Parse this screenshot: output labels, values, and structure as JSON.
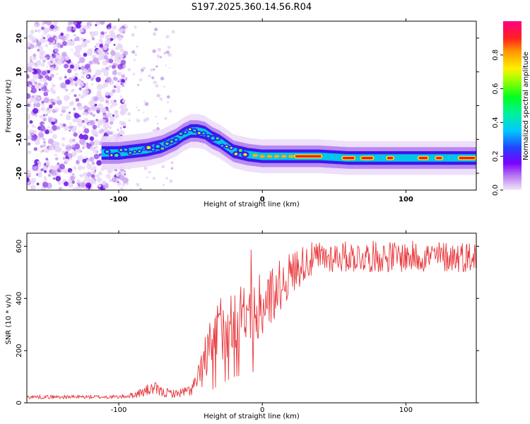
{
  "title": "S197.2025.360.14.56.R04",
  "chart_data": [
    {
      "type": "heatmap",
      "name": "spectrogram",
      "xlabel": "Height of straight line (km)",
      "ylabel": "Frequency (Hz)",
      "xlim": [
        -164,
        149
      ],
      "ylim": [
        -25,
        25
      ],
      "xticks": [
        -100,
        0,
        100
      ],
      "xtick_labels": [
        "-100",
        "0",
        "100"
      ],
      "yticks": [
        -20,
        -10,
        0,
        10,
        20
      ],
      "ytick_labels": [
        "-20",
        "-10",
        "0",
        "10",
        "20"
      ],
      "ridge": {
        "x": [
          -110,
          -100,
          -90,
          -80,
          -70,
          -60,
          -55,
          -50,
          -45,
          -40,
          -35,
          -30,
          -25,
          -20,
          -10,
          0,
          10,
          20,
          40,
          60,
          80,
          100,
          120,
          149
        ],
        "y": [
          -14,
          -14,
          -13.5,
          -13,
          -12,
          -10,
          -8.5,
          -7.5,
          -7.5,
          -8,
          -9.5,
          -10.5,
          -12,
          -13.5,
          -14.5,
          -15,
          -15,
          -15,
          -15,
          -15.5,
          -15.5,
          -15.5,
          -15.5,
          -15.5
        ]
      },
      "colorbar": {
        "label": "Normalized spectral amplitude",
        "ticks": [
          0.0,
          0.2,
          0.4,
          0.6,
          0.8
        ],
        "tick_labels": [
          "0.0",
          "0.2",
          "0.4",
          "0.6",
          "0.8"
        ],
        "range": [
          0,
          1
        ]
      }
    },
    {
      "type": "line",
      "name": "snr",
      "xlabel": "Height of straight line (km)",
      "ylabel": "SNR (10 * v/v)",
      "xlim": [
        -164,
        149
      ],
      "ylim": [
        0,
        650
      ],
      "xticks": [
        -100,
        0,
        100
      ],
      "xtick_labels": [
        "-100",
        "0",
        "100"
      ],
      "yticks": [
        0,
        200,
        400,
        600
      ],
      "ytick_labels": [
        "0",
        "200",
        "400",
        "600"
      ],
      "color": "#e8363a",
      "envelope": {
        "x": [
          -164,
          -100,
          -90,
          -80,
          -75,
          -70,
          -60,
          -50,
          -45,
          -40,
          -35,
          -30,
          -25,
          -20,
          -15,
          -10,
          -5,
          0,
          10,
          20,
          25,
          30,
          40,
          50,
          60,
          70,
          80,
          90,
          100,
          110,
          120,
          130,
          149
        ],
        "lo": [
          15,
          15,
          18,
          25,
          30,
          20,
          20,
          25,
          40,
          70,
          100,
          140,
          170,
          200,
          210,
          230,
          240,
          250,
          330,
          410,
          440,
          470,
          490,
          500,
          500,
          500,
          500,
          500,
          500,
          500,
          500,
          500,
          500
        ],
        "hi": [
          30,
          30,
          40,
          70,
          80,
          60,
          50,
          70,
          130,
          260,
          330,
          420,
          460,
          440,
          460,
          460,
          480,
          500,
          540,
          580,
          600,
          610,
          620,
          620,
          620,
          620,
          620,
          620,
          620,
          620,
          620,
          620,
          620
        ]
      }
    }
  ]
}
